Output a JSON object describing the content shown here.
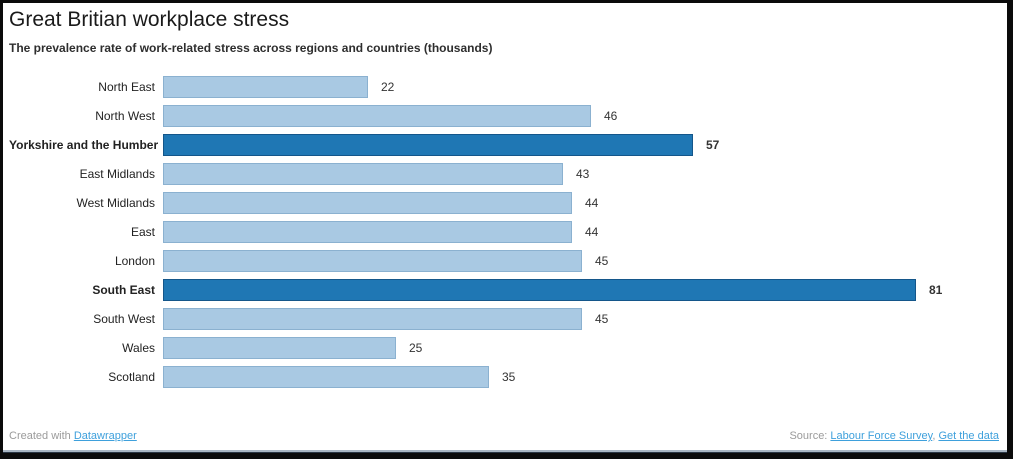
{
  "header": {
    "title": "Great Britian workplace stress",
    "subtitle": "The prevalence rate of work-related stress across regions and countries (thousands)"
  },
  "chart_data": {
    "type": "bar",
    "orientation": "horizontal",
    "title": "Great Britian workplace stress",
    "subtitle": "The prevalence rate of work-related stress across regions and countries (thousands)",
    "categories": [
      "North East",
      "North West",
      "Yorkshire and the Humber",
      "East Midlands",
      "West Midlands",
      "East",
      "London",
      "South East",
      "South West",
      "Wales",
      "Scotland"
    ],
    "values": [
      22,
      46,
      57,
      43,
      44,
      44,
      45,
      81,
      45,
      25,
      35
    ],
    "highlighted": [
      "Yorkshire and the Humber",
      "South East"
    ],
    "xlim": [
      0,
      81
    ],
    "value_labels": true,
    "grid": false,
    "legend": "none",
    "colors": {
      "bar_fill": "#a9c9e3",
      "bar_border": "#8bb1d0",
      "highlight_fill": "#1f77b4",
      "highlight_border": "#14568a"
    }
  },
  "footer": {
    "created_with": "Created with ",
    "datawrapper_link": "Datawrapper",
    "source_label": "Source: ",
    "source_link": "Labour Force Survey",
    "separator": ", ",
    "get_data_link": "Get the data"
  }
}
